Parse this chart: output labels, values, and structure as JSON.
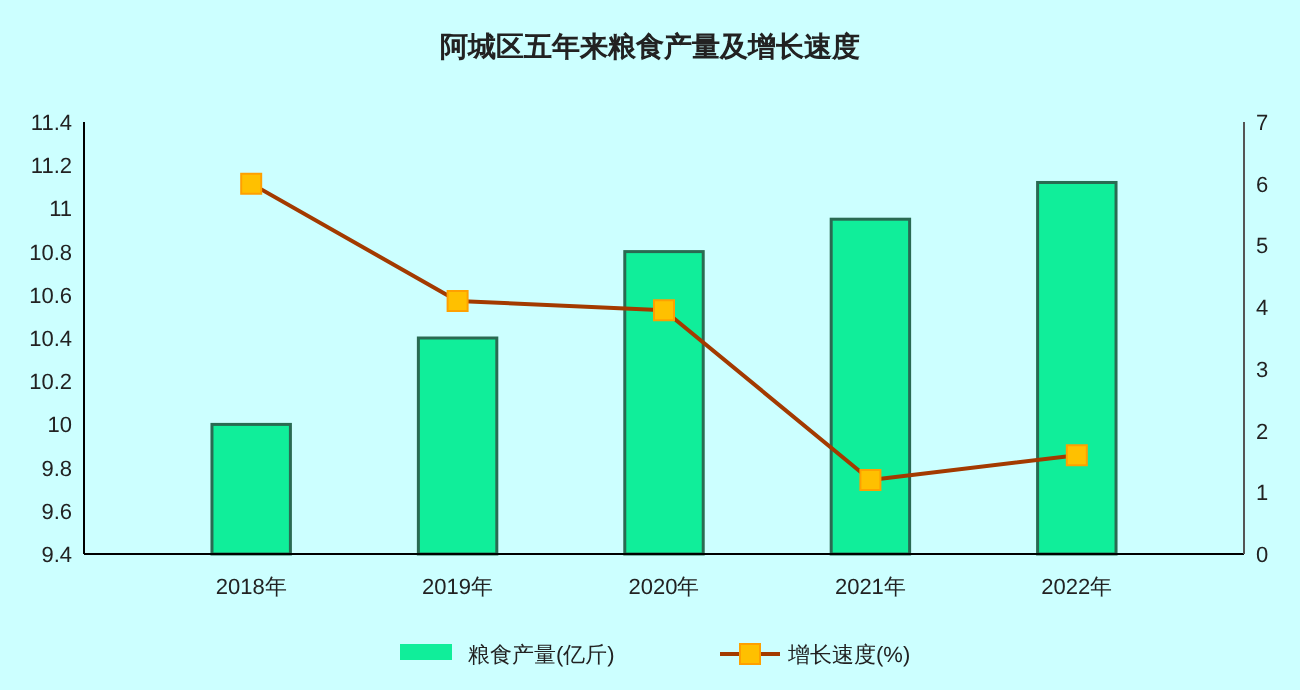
{
  "chart_data": {
    "type": "bar",
    "title": "阿城区五年来粮食产量及增长速度",
    "categories": [
      "2018年",
      "2019年",
      "2020年",
      "2021年",
      "2022年"
    ],
    "series": [
      {
        "name": "粮食产量(亿斤)",
        "color": "#10ee9a",
        "values": [
          10.0,
          10.4,
          10.8,
          10.95,
          11.12
        ]
      },
      {
        "name": "增长速度(%)",
        "type": "line",
        "axis": "y2",
        "color": "#a33a00",
        "marker": "square",
        "values": [
          6.0,
          4.1,
          3.95,
          1.2,
          1.6
        ]
      }
    ],
    "ylim": [
      9.4,
      11.4
    ],
    "yticks": [
      9.4,
      9.6,
      9.8,
      10,
      10.2,
      10.4,
      10.6,
      10.8,
      11,
      11.2,
      11.4
    ],
    "y2lim": [
      0,
      7
    ],
    "y2ticks": [
      0,
      1,
      2,
      3,
      4,
      5,
      6,
      7
    ],
    "grid": false,
    "legend": "bottom"
  }
}
